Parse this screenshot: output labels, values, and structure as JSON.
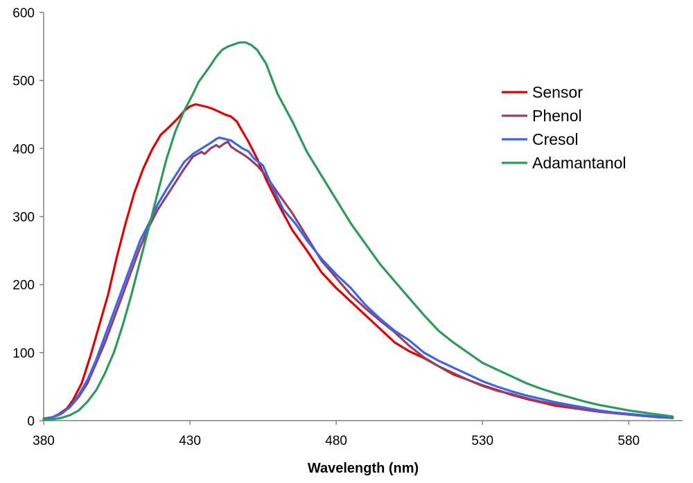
{
  "chart_data": {
    "type": "line",
    "title": "",
    "xlabel": "Wavelength (nm)",
    "ylabel": "",
    "xlim": [
      380,
      597
    ],
    "ylim": [
      0,
      600
    ],
    "xticks": [
      380,
      430,
      480,
      530,
      580
    ],
    "yticks": [
      0,
      100,
      200,
      300,
      400,
      500,
      600
    ],
    "grid": false,
    "legend_position": "top-right",
    "series": [
      {
        "name": "Sensor",
        "color": "#e00000",
        "x": [
          380,
          383,
          385,
          388,
          390,
          393,
          396,
          399,
          402,
          405,
          408,
          411,
          414,
          417,
          420,
          423,
          426,
          428,
          430,
          432,
          434,
          435,
          436,
          438,
          440,
          442,
          444,
          446,
          448,
          450,
          453,
          456,
          460,
          465,
          470,
          475,
          480,
          485,
          490,
          495,
          500,
          505,
          510,
          515,
          520,
          525,
          530,
          535,
          540,
          545,
          550,
          555,
          560,
          565,
          570,
          575,
          580,
          585,
          590,
          595
        ],
        "y": [
          3,
          5,
          9,
          18,
          30,
          55,
          95,
          140,
          185,
          240,
          290,
          335,
          370,
          398,
          420,
          432,
          445,
          455,
          462,
          465,
          463,
          462,
          461,
          458,
          454,
          450,
          447,
          440,
          425,
          410,
          385,
          355,
          320,
          280,
          250,
          218,
          195,
          175,
          155,
          135,
          115,
          102,
          92,
          80,
          68,
          60,
          52,
          45,
          38,
          32,
          27,
          22,
          19,
          16,
          13,
          11,
          9,
          7,
          6,
          4
        ]
      },
      {
        "name": "Phenol",
        "color": "#943f6c",
        "x": [
          380,
          383,
          386,
          389,
          392,
          395,
          398,
          401,
          404,
          407,
          410,
          413,
          416,
          419,
          422,
          425,
          428,
          431,
          434,
          435,
          437,
          439,
          440,
          442,
          443,
          444,
          446,
          448,
          450,
          453,
          456,
          460,
          465,
          470,
          475,
          480,
          485,
          490,
          495,
          500,
          505,
          510,
          515,
          520,
          525,
          530,
          535,
          540,
          545,
          550,
          555,
          560,
          565,
          570,
          575,
          580,
          585,
          590,
          595
        ],
        "y": [
          3,
          5,
          10,
          20,
          35,
          55,
          85,
          115,
          150,
          185,
          220,
          255,
          285,
          310,
          330,
          350,
          370,
          388,
          395,
          392,
          400,
          405,
          402,
          408,
          410,
          403,
          397,
          392,
          386,
          375,
          360,
          335,
          305,
          270,
          235,
          210,
          185,
          165,
          147,
          130,
          110,
          93,
          80,
          70,
          60,
          51,
          44,
          39,
          33,
          28,
          24,
          20,
          16,
          13,
          11,
          9,
          7,
          5,
          4
        ]
      },
      {
        "name": "Cresol",
        "color": "#3a67e8",
        "x": [
          380,
          383,
          386,
          389,
          392,
          395,
          398,
          401,
          404,
          407,
          410,
          413,
          416,
          419,
          422,
          425,
          428,
          431,
          434,
          437,
          439,
          440,
          442,
          444,
          446,
          448,
          450,
          452,
          455,
          458,
          462,
          466,
          470,
          475,
          480,
          485,
          490,
          495,
          500,
          505,
          510,
          515,
          520,
          525,
          530,
          535,
          540,
          545,
          550,
          555,
          560,
          565,
          570,
          575,
          580,
          585,
          590,
          595
        ],
        "y": [
          2,
          5,
          10,
          20,
          38,
          60,
          90,
          125,
          160,
          195,
          230,
          265,
          290,
          318,
          340,
          360,
          380,
          392,
          400,
          408,
          414,
          416,
          414,
          412,
          406,
          400,
          396,
          385,
          375,
          345,
          310,
          290,
          265,
          238,
          215,
          195,
          170,
          150,
          132,
          118,
          100,
          88,
          78,
          68,
          58,
          50,
          43,
          37,
          32,
          27,
          23,
          19,
          15,
          12,
          10,
          8,
          6,
          4
        ]
      },
      {
        "name": "Adamantanol",
        "color": "#2e9a5a",
        "x": [
          380,
          383,
          386,
          389,
          392,
          395,
          398,
          401,
          404,
          407,
          410,
          413,
          416,
          419,
          422,
          425,
          428,
          431,
          433,
          435,
          437,
          439,
          441,
          443,
          445,
          447,
          449,
          451,
          453,
          456,
          460,
          465,
          470,
          475,
          480,
          485,
          490,
          495,
          500,
          505,
          510,
          515,
          520,
          525,
          530,
          535,
          540,
          545,
          550,
          555,
          560,
          565,
          570,
          575,
          580,
          585,
          590,
          595
        ],
        "y": [
          1,
          2,
          4,
          8,
          15,
          28,
          45,
          70,
          100,
          140,
          185,
          235,
          285,
          335,
          385,
          425,
          455,
          480,
          498,
          510,
          522,
          535,
          545,
          550,
          553,
          556,
          556,
          552,
          545,
          525,
          480,
          440,
          395,
          360,
          325,
          290,
          260,
          230,
          205,
          180,
          155,
          132,
          115,
          100,
          85,
          75,
          65,
          55,
          47,
          40,
          34,
          28,
          23,
          19,
          15,
          12,
          9,
          6
        ]
      }
    ]
  }
}
